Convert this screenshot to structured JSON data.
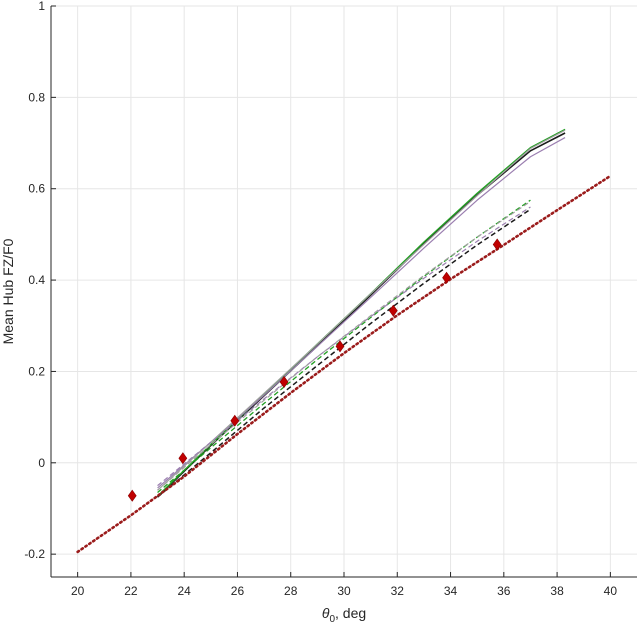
{
  "chart_data": {
    "type": "line",
    "title": "",
    "xlabel_symbol": "θ",
    "xlabel_sub": "0",
    "xlabel_rest": ", deg",
    "ylabel": "Mean Hub FZ/F0",
    "xlim": [
      19,
      41
    ],
    "ylim": [
      -0.25,
      1
    ],
    "xticks": [
      20,
      22,
      24,
      26,
      28,
      30,
      32,
      34,
      36,
      38,
      40
    ],
    "yticks": [
      -0.2,
      0,
      0.2,
      0.4,
      0.6,
      0.8,
      1
    ],
    "ytick_labels": [
      "-0.2",
      "0",
      "0.2",
      "0.4",
      "0.6",
      "0.8",
      "1"
    ],
    "grid": true,
    "series": [
      {
        "color": "#1a1a1a",
        "style": "solid",
        "width": 1.6,
        "x": [
          23,
          25,
          27,
          29,
          31,
          33,
          35,
          37,
          38.3
        ],
        "y": [
          -0.075,
          0.038,
          0.147,
          0.256,
          0.367,
          0.48,
          0.586,
          0.683,
          0.722
        ]
      },
      {
        "color": "#22a022",
        "style": "solid",
        "width": 1.4,
        "x": [
          23,
          25,
          27,
          29,
          31,
          33,
          35,
          37,
          38.3
        ],
        "y": [
          -0.073,
          0.04,
          0.15,
          0.26,
          0.37,
          0.483,
          0.59,
          0.69,
          0.73
        ]
      },
      {
        "color": "#9b7fb0",
        "style": "solid",
        "width": 1.2,
        "x": [
          23,
          25,
          27,
          29,
          31,
          33,
          35,
          37,
          38.3
        ],
        "y": [
          -0.055,
          0.045,
          0.148,
          0.255,
          0.362,
          0.47,
          0.575,
          0.67,
          0.712
        ]
      },
      {
        "color": "#a0a0a0",
        "style": "solid",
        "width": 1.2,
        "x": [
          23,
          25,
          27,
          29,
          31,
          33,
          35,
          37,
          38.3
        ],
        "y": [
          -0.06,
          0.045,
          0.152,
          0.26,
          0.37,
          0.478,
          0.585,
          0.688,
          0.728
        ]
      },
      {
        "color": "#1a1a1a",
        "style": "dashed",
        "width": 1.5,
        "x": [
          23,
          25,
          27,
          29,
          31,
          33,
          35,
          37
        ],
        "y": [
          -0.075,
          0.022,
          0.12,
          0.213,
          0.305,
          0.393,
          0.477,
          0.555
        ]
      },
      {
        "color": "#22a022",
        "style": "dashed",
        "width": 1.3,
        "x": [
          23,
          25,
          27,
          29,
          31,
          33,
          35,
          37
        ],
        "y": [
          -0.065,
          0.033,
          0.13,
          0.226,
          0.318,
          0.408,
          0.494,
          0.575
        ]
      },
      {
        "color": "#9b7fb0",
        "style": "dashed",
        "width": 1.2,
        "x": [
          23,
          25,
          27,
          29,
          31,
          33,
          35,
          37
        ],
        "y": [
          -0.05,
          0.045,
          0.14,
          0.232,
          0.32,
          0.404,
          0.485,
          0.56
        ]
      },
      {
        "color": "#a0a0a0",
        "style": "dashed",
        "width": 1.2,
        "x": [
          23,
          25,
          27,
          29,
          31,
          33,
          35,
          37
        ],
        "y": [
          -0.06,
          0.04,
          0.137,
          0.232,
          0.322,
          0.41,
          0.494,
          0.572
        ]
      },
      {
        "color": "#9b1c1c",
        "style": "dotted",
        "width": 2.6,
        "x": [
          20,
          22,
          24,
          26,
          28,
          30,
          32,
          34,
          36,
          38,
          40
        ],
        "y": [
          -0.195,
          -0.115,
          -0.03,
          0.063,
          0.153,
          0.24,
          0.323,
          0.402,
          0.477,
          0.553,
          0.628
        ]
      }
    ],
    "markers": {
      "color": "#c00000",
      "shape": "diamond",
      "x": [
        22.05,
        23.95,
        25.9,
        27.75,
        29.85,
        31.85,
        33.85,
        35.75
      ],
      "y": [
        -0.072,
        0.01,
        0.092,
        0.177,
        0.255,
        0.333,
        0.405,
        0.478
      ]
    }
  }
}
